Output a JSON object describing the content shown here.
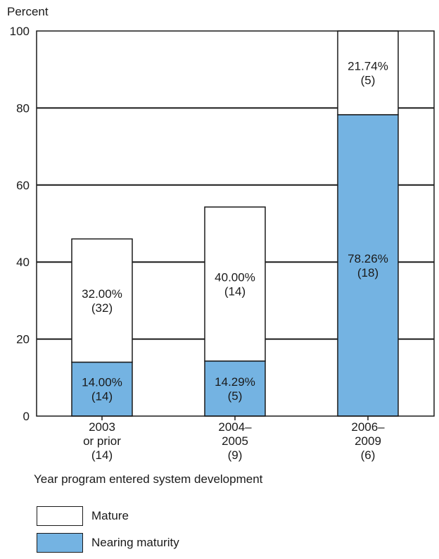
{
  "chart_data": {
    "type": "bar",
    "stacked": true,
    "ylabel": "Percent",
    "xlabel": "Year program entered system development",
    "ylim": [
      0,
      100
    ],
    "yticks": [
      0,
      20,
      40,
      60,
      80,
      100
    ],
    "grid": true,
    "categories": [
      [
        "2003",
        "or prior",
        "(14)"
      ],
      [
        "2004–",
        "2005",
        "(9)"
      ],
      [
        "2006–",
        "2009",
        "(6)"
      ]
    ],
    "series": [
      {
        "name": "Nearing maturity",
        "values": [
          14.0,
          14.29,
          78.26
        ],
        "labels": [
          [
            "14.00%",
            "(14)"
          ],
          [
            "14.29%",
            "(5)"
          ],
          [
            "78.26%",
            "(18)"
          ]
        ]
      },
      {
        "name": "Mature",
        "values": [
          32.0,
          40.0,
          21.74
        ],
        "labels": [
          [
            "32.00%",
            "(32)"
          ],
          [
            "40.00%",
            "(14)"
          ],
          [
            "21.74%",
            "(5)"
          ]
        ]
      }
    ],
    "colors": {
      "Nearing maturity": "#74b3e2",
      "Mature": "#ffffff"
    }
  }
}
